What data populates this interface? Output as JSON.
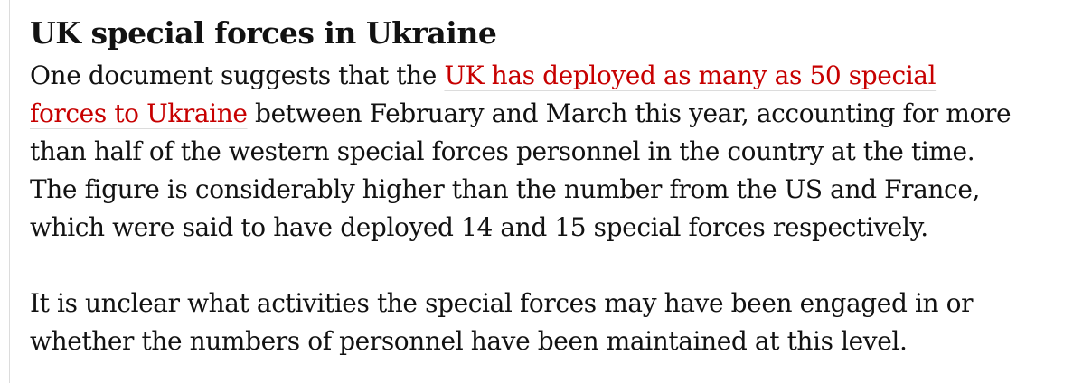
{
  "article": {
    "headline": "UK special forces in Ukraine",
    "colors": {
      "body_text": "#121212",
      "link_red": "#c70000",
      "link_underline": "#dcdcdc",
      "left_rule": "#dcdcdc"
    },
    "paragraph1": {
      "lines": [
        {
          "pre": "One document suggests that the ",
          "link": "UK has deployed as many as 50 special"
        },
        {
          "link": "forces to Ukraine",
          "post": " between February and March this year, accounting for more"
        },
        {
          "text": "than half of the western special forces personnel in the country at the time."
        },
        {
          "text": "The figure is considerably higher than the number from the US and France,"
        },
        {
          "text": "which were said to have deployed 14 and 15 special forces respectively."
        }
      ]
    },
    "paragraph2": {
      "lines": [
        {
          "text": "It is unclear what activities the special forces may have been engaged in or"
        },
        {
          "text": "whether the numbers of personnel have been maintained at this level."
        }
      ]
    }
  }
}
